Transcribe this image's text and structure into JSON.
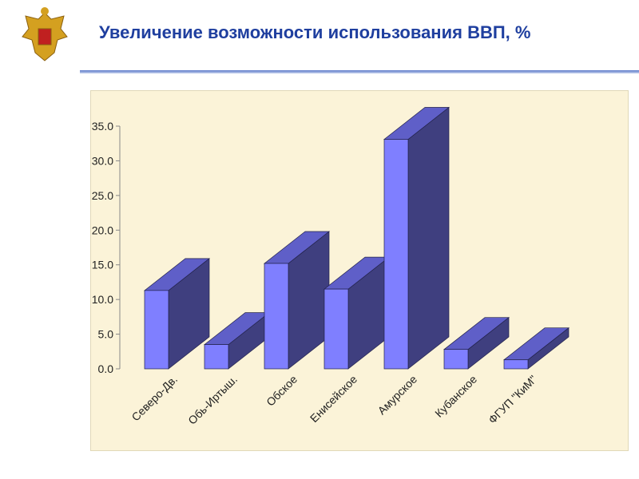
{
  "header": {
    "title": "Увеличение возможности использования ВВП, %"
  },
  "chart_data": {
    "type": "bar",
    "title": "",
    "categories": [
      "Северо-Дв.",
      "Обь-Иртыш.",
      "Обское",
      "Енисейское",
      "Амурское",
      "Кубанское",
      "ФГУП \"КиМ\""
    ],
    "values": [
      11.3,
      3.5,
      15.2,
      11.5,
      33.1,
      2.8,
      1.3
    ],
    "ylim": [
      0,
      35
    ],
    "yticks": [
      "0.0",
      "5.0",
      "10.0",
      "15.0",
      "20.0",
      "25.0",
      "30.0",
      "35.0"
    ],
    "style": "3d-columns",
    "grid": false,
    "colors": {
      "front": "#7f7fff",
      "top": "#5f5fc8",
      "side": "#3f3f7f"
    }
  }
}
